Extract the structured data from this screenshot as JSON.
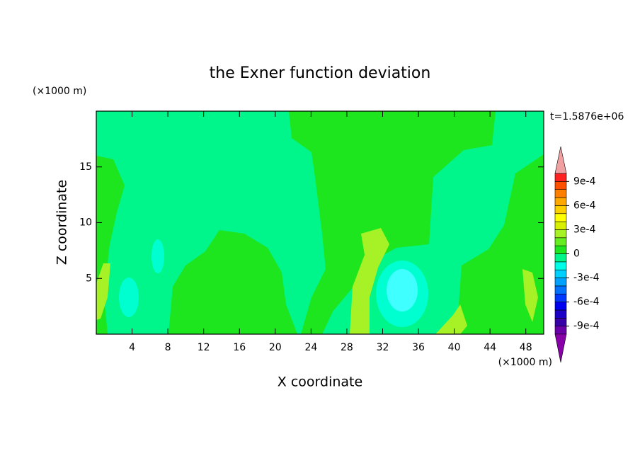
{
  "chart_data": {
    "type": "contour",
    "title": "the Exner function deviation",
    "x_label": "X coordinate",
    "y_label": "Z coordinate",
    "x_unit": "(×1000 m)",
    "y_unit": "(×1000 m)",
    "time_label": "t=1.5876e+06",
    "xlim": [
      0,
      50
    ],
    "ylim": [
      0,
      20
    ],
    "xticks": [
      4,
      8,
      12,
      16,
      20,
      24,
      28,
      32,
      36,
      40,
      44,
      48
    ],
    "yticks": [
      5,
      10,
      15
    ],
    "colorbar": {
      "levels": [
        -0.001,
        -0.0009,
        -0.0008,
        -0.0007,
        -0.0006,
        -0.0005,
        -0.0004,
        -0.0003,
        -0.0002,
        -0.0001,
        0,
        0.0001,
        0.0002,
        0.0003,
        0.0004,
        0.0005,
        0.0006,
        0.0007,
        0.0008,
        0.0009,
        0.001
      ],
      "colors": [
        "#6a00a8",
        "#3800a8",
        "#1c00c8",
        "#0000f0",
        "#0038ff",
        "#0070ff",
        "#00a0ff",
        "#00d0ff",
        "#00ffe8",
        "#00f58a",
        "#1ee61e",
        "#64ee20",
        "#a6f226",
        "#d8f000",
        "#ffff00",
        "#ffd000",
        "#ffa800",
        "#ff8000",
        "#ff5000",
        "#ff2020"
      ],
      "over_color": "#f0a0a0",
      "under_color": "#8800a8",
      "ticks": [
        {
          "value": -0.0009,
          "label": "-9e-4"
        },
        {
          "value": -0.0006,
          "label": "-6e-4"
        },
        {
          "value": -0.0003,
          "label": "-3e-4"
        },
        0,
        {
          "value": 0.0003,
          "label": "3e-4"
        },
        {
          "value": 0.0006,
          "label": "6e-4"
        },
        {
          "value": 0.0009,
          "label": "9e-4"
        }
      ]
    }
  }
}
